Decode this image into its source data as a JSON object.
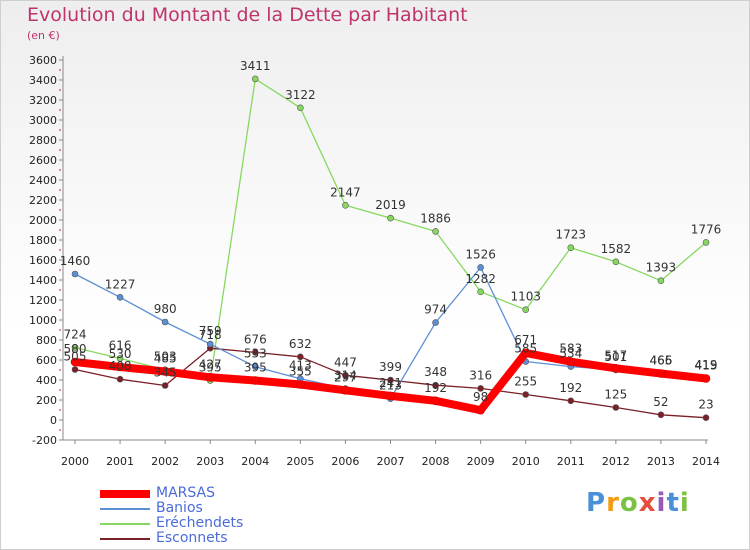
{
  "title": "Evolution du Montant de la Dette par Habitant",
  "subtitle": "(en €)",
  "logo": {
    "letters": [
      "P",
      "r",
      "o",
      "x",
      "i",
      "t",
      "i"
    ]
  },
  "chart_data": {
    "type": "line",
    "title": "Evolution du Montant de la Dette par Habitant",
    "subtitle": "(en €)",
    "xlabel": "",
    "ylabel": "",
    "ylim": [
      -200,
      3600
    ],
    "yticks": [
      -200,
      0,
      200,
      400,
      600,
      800,
      1000,
      1200,
      1400,
      1600,
      1800,
      2000,
      2200,
      2400,
      2600,
      2800,
      3000,
      3200,
      3400,
      3600
    ],
    "grid": false,
    "legend": "bottom-left",
    "x": [
      "2000",
      "2001",
      "2002",
      "2003",
      "2004",
      "2005",
      "2006",
      "2007",
      "2008",
      "2009",
      "2010",
      "2011",
      "2012",
      "2013",
      "2014"
    ],
    "series": [
      {
        "name": "MARSAS",
        "color": "#ff0000",
        "values": [
          580,
          530,
          485,
          427,
          395,
          355,
          297,
          241,
          192,
          98,
          671,
          583,
          517,
          465,
          415
        ]
      },
      {
        "name": "Banios",
        "color": "#5b8fd6",
        "values": [
          1460,
          1227,
          980,
          759,
          533,
          413,
          314,
          213,
          974,
          1526,
          585,
          534,
          501,
          466,
          419
        ]
      },
      {
        "name": "Eréchendets",
        "color": "#88d860",
        "values": [
          724,
          616,
          503,
          395,
          3411,
          3122,
          2147,
          2019,
          1886,
          1282,
          1103,
          1723,
          1582,
          1393,
          1776
        ]
      },
      {
        "name": "Esconnets",
        "color": "#7a2028",
        "values": [
          505,
          408,
          345,
          718,
          676,
          632,
          447,
          399,
          348,
          316,
          255,
          192,
          125,
          52,
          23
        ]
      }
    ]
  }
}
